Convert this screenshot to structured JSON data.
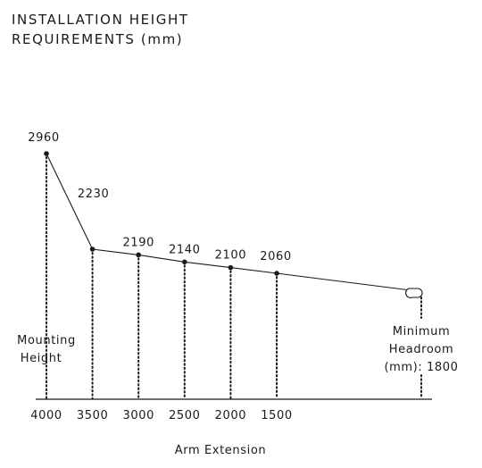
{
  "title": {
    "line1": "INSTALLATION HEIGHT",
    "line2": "REQUIREMENTS (mm)"
  },
  "left_label": {
    "line1": "Mounting",
    "line2": "Height"
  },
  "right_label": {
    "line1": "Minimum",
    "line2": "Headroom",
    "line3": "(mm): 1800"
  },
  "x_axis_title": "Arm Extension",
  "chart_data": {
    "type": "line",
    "title": "INSTALLATION HEIGHT REQUIREMENTS (mm)",
    "xlabel": "Arm Extension",
    "ylabel": "",
    "x": [
      4000,
      3500,
      3000,
      2500,
      2000,
      1500
    ],
    "values": [
      2960,
      2230,
      2190,
      2140,
      2100,
      2060
    ],
    "x_tick_labels": [
      "4000",
      "3500",
      "3000",
      "2500",
      "2000",
      "1500"
    ],
    "point_labels": [
      "2960",
      "2230",
      "2190",
      "2140",
      "2100",
      "2060"
    ],
    "minimum_headroom": 1800,
    "grid": false,
    "legend": "none"
  },
  "colors": {
    "ink": "#1a1a1a"
  }
}
